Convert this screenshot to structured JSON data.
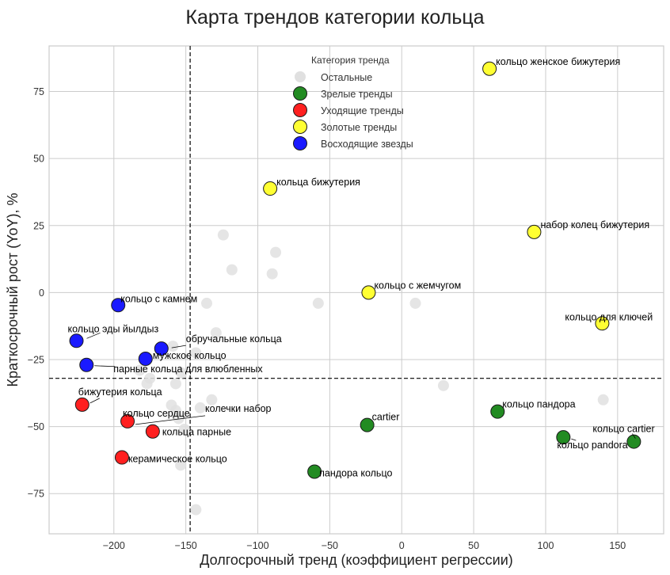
{
  "chart_data": {
    "type": "scatter",
    "title": "Карта трендов категории кольца",
    "xlabel": "Долгосрочный тренд (коэффициент регрессии)",
    "ylabel": "Краткосрочный рост (YoY), %",
    "xlim": [
      -245,
      182
    ],
    "ylim": [
      -90,
      92
    ],
    "xticks": [
      -200,
      -150,
      -100,
      -50,
      0,
      50,
      100,
      150
    ],
    "yticks": [
      -75,
      -50,
      -25,
      0,
      25,
      50,
      75
    ],
    "xtick_labels": [
      "−200",
      "−150",
      "−100",
      "−50",
      "0",
      "50",
      "100",
      "150"
    ],
    "ytick_labels": [
      "−75",
      "−50",
      "−25",
      "0",
      "25",
      "50",
      "75"
    ],
    "grid": true,
    "reference_lines": {
      "x": -147,
      "y": -32
    },
    "legend": {
      "title": "Категория тренда",
      "placement": "top-center",
      "entries": [
        {
          "key": "other",
          "label": "Остальные",
          "color": "#e0e0e0"
        },
        {
          "key": "mature",
          "label": "Зрелые тренды",
          "color": "#228b22"
        },
        {
          "key": "declining",
          "label": "Уходящие тренды",
          "color": "#ff2020"
        },
        {
          "key": "golden",
          "label": "Золотые тренды",
          "color": "#ffff33"
        },
        {
          "key": "rising",
          "label": "Восходящие звезды",
          "color": "#1a1aff"
        }
      ]
    },
    "series": [
      {
        "name": "Остальные",
        "key": "other",
        "points": [
          {
            "x": -124,
            "y": 21.5
          },
          {
            "x": -87.6,
            "y": 15
          },
          {
            "x": -118,
            "y": 8.5
          },
          {
            "x": -90,
            "y": 7
          },
          {
            "x": -135.5,
            "y": -4
          },
          {
            "x": -58,
            "y": -4
          },
          {
            "x": 9.5,
            "y": -4
          },
          {
            "x": -129,
            "y": -15
          },
          {
            "x": -159,
            "y": -20
          },
          {
            "x": -143,
            "y": -22.5
          },
          {
            "x": -182,
            "y": -29
          },
          {
            "x": -153,
            "y": -30
          },
          {
            "x": -175,
            "y": -32
          },
          {
            "x": -177,
            "y": -34
          },
          {
            "x": -157,
            "y": -34
          },
          {
            "x": -132,
            "y": -40
          },
          {
            "x": -140,
            "y": -43
          },
          {
            "x": -160,
            "y": -42
          },
          {
            "x": -157,
            "y": -44
          },
          {
            "x": -155,
            "y": -47
          },
          {
            "x": -151,
            "y": -51
          },
          {
            "x": -153.6,
            "y": -64.4
          },
          {
            "x": -143,
            "y": -81
          },
          {
            "x": 29,
            "y": -34.7
          },
          {
            "x": 140,
            "y": -40
          }
        ]
      },
      {
        "name": "Зрелые тренды",
        "key": "mature",
        "points": [
          {
            "x": -24,
            "y": -49.4,
            "label": "cartier"
          },
          {
            "x": 66.6,
            "y": -44.4,
            "label": "кольцо пандора"
          },
          {
            "x": 112.3,
            "y": -54,
            "label": "кольцо pandora"
          },
          {
            "x": 161.3,
            "y": -55.6,
            "label": "кольцо cartier"
          },
          {
            "x": -60.6,
            "y": -66.8,
            "label": "пандора кольцо"
          }
        ]
      },
      {
        "name": "Уходящие тренды",
        "key": "declining",
        "points": [
          {
            "x": -222,
            "y": -41.8,
            "label": "бижутерия кольца"
          },
          {
            "x": -190.5,
            "y": -48,
            "label": "кольцо сердце"
          },
          {
            "x": -190.5,
            "y": -48,
            "label": "колечки набор"
          },
          {
            "x": -173,
            "y": -51.8,
            "label": "кольца парные"
          },
          {
            "x": -194.4,
            "y": -61.5,
            "label": "керамическое кольцо"
          }
        ]
      },
      {
        "name": "Золотые тренды",
        "key": "golden",
        "points": [
          {
            "x": 61,
            "y": 83.5,
            "label": "кольцо женское бижутерия"
          },
          {
            "x": -91.4,
            "y": 38.8,
            "label": "кольца бижутерия"
          },
          {
            "x": 92,
            "y": 22.6,
            "label": "набор колец бижутерия"
          },
          {
            "x": -23,
            "y": 0,
            "label": "кольцо с жемчугом"
          },
          {
            "x": 139.3,
            "y": -11.5,
            "label": "кольцо для ключей"
          }
        ]
      },
      {
        "name": "Восходящие звезды",
        "key": "rising",
        "points": [
          {
            "x": -197,
            "y": -4.7,
            "label": "кольцо с камнем"
          },
          {
            "x": -226,
            "y": -18,
            "label": "кольцо эды йылдыз"
          },
          {
            "x": -167,
            "y": -20.9,
            "label": "обручальные кольца"
          },
          {
            "x": -178,
            "y": -24.7,
            "label": "мужское кольцо"
          },
          {
            "x": -219,
            "y": -27,
            "label": "парные кольца для влюбленных"
          }
        ]
      }
    ]
  }
}
